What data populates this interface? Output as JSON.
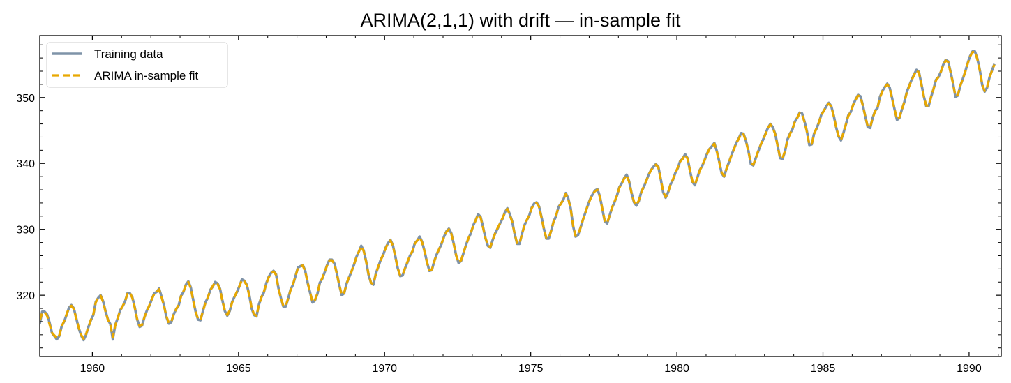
{
  "chart_data": {
    "type": "line",
    "title": "ARIMA(2,1,1) with drift — in-sample fit",
    "xlabel": "",
    "ylabel": "",
    "xlim": [
      1958.2,
      1991.1
    ],
    "ylim": [
      310.7,
      359.4
    ],
    "x_ticks": [
      1960,
      1965,
      1970,
      1975,
      1980,
      1985,
      1990
    ],
    "y_ticks": [
      320,
      330,
      340,
      350
    ],
    "grid": false,
    "legend_position": "top-left",
    "x_start": 1958.2,
    "x_step": 0.0833333,
    "series": [
      {
        "name": "Training data",
        "color": "#7f93a8",
        "style": "solid",
        "values": [
          315.7,
          317.5,
          317.5,
          317.1,
          315.9,
          314.3,
          313.8,
          313.3,
          313.8,
          315.3,
          316.0,
          317.0,
          318.1,
          318.5,
          318.0,
          316.5,
          315.0,
          313.9,
          313.2,
          314.0,
          315.2,
          316.2,
          317.0,
          319.0,
          319.6,
          320.0,
          319.1,
          317.6,
          316.3,
          315.6,
          313.3,
          315.5,
          316.5,
          317.7,
          318.3,
          319.0,
          320.3,
          320.3,
          319.7,
          318.2,
          316.3,
          315.2,
          315.4,
          316.7,
          317.7,
          318.4,
          319.4,
          320.3,
          320.5,
          321.0,
          319.8,
          318.5,
          316.7,
          315.7,
          315.9,
          317.1,
          317.9,
          318.4,
          319.9,
          320.5,
          321.6,
          322.1,
          321.2,
          319.3,
          317.5,
          316.3,
          316.2,
          317.6,
          318.9,
          319.6,
          320.8,
          321.3,
          322.0,
          321.8,
          321.0,
          319.2,
          317.6,
          316.9,
          317.6,
          319.0,
          319.8,
          320.5,
          321.4,
          322.4,
          322.2,
          321.6,
          320.1,
          318.0,
          317.0,
          316.8,
          318.6,
          319.7,
          320.4,
          321.8,
          322.8,
          323.4,
          323.7,
          323.2,
          321.1,
          319.6,
          318.3,
          318.3,
          319.5,
          320.9,
          321.6,
          322.9,
          324.2,
          324.4,
          324.6,
          323.7,
          321.9,
          320.4,
          318.9,
          319.2,
          320.2,
          321.9,
          322.5,
          323.5,
          324.6,
          325.4,
          325.4,
          324.8,
          323.3,
          321.5,
          320.0,
          320.3,
          321.8,
          322.7,
          323.6,
          324.6,
          325.8,
          326.6,
          327.5,
          326.8,
          325.2,
          323.1,
          321.9,
          321.6,
          323.3,
          324.3,
          325.4,
          326.1,
          327.2,
          327.9,
          328.4,
          327.6,
          325.9,
          324.1,
          322.9,
          323.0,
          324.1,
          325.0,
          326.0,
          326.6,
          327.9,
          328.3,
          328.9,
          328.1,
          326.7,
          325.0,
          323.7,
          323.8,
          325.2,
          326.2,
          327.0,
          327.8,
          328.9,
          329.7,
          330.1,
          329.4,
          327.8,
          326.0,
          324.9,
          325.2,
          326.4,
          327.6,
          328.6,
          329.4,
          330.6,
          331.4,
          332.3,
          331.9,
          330.4,
          328.7,
          327.5,
          327.2,
          328.4,
          329.4,
          330.1,
          330.9,
          331.6,
          332.6,
          333.2,
          332.3,
          331.2,
          329.3,
          327.8,
          327.8,
          329.3,
          330.6,
          331.4,
          332.1,
          333.3,
          333.9,
          334.1,
          333.5,
          331.9,
          330.1,
          328.6,
          328.6,
          329.8,
          331.2,
          332.0,
          333.4,
          333.9,
          334.5,
          335.5,
          334.7,
          333.2,
          330.5,
          328.9,
          329.1,
          330.2,
          331.4,
          332.5,
          333.6,
          334.6,
          335.3,
          335.9,
          336.1,
          335.0,
          333.1,
          331.2,
          330.9,
          332.1,
          333.3,
          334.1,
          335.1,
          336.4,
          337.0,
          337.8,
          338.3,
          337.3,
          335.5,
          334.1,
          333.6,
          334.3,
          335.7,
          336.4,
          337.3,
          338.3,
          339.0,
          339.5,
          339.9,
          339.5,
          337.6,
          335.6,
          334.8,
          335.6,
          336.8,
          337.5,
          338.6,
          339.3,
          340.4,
          340.7,
          341.4,
          340.8,
          338.9,
          337.2,
          336.7,
          337.8,
          339.0,
          339.6,
          340.5,
          341.5,
          342.2,
          342.6,
          343.1,
          341.9,
          340.3,
          338.5,
          338.0,
          339.2,
          340.2,
          341.2,
          342.2,
          343.1,
          343.8,
          344.6,
          344.5,
          343.4,
          341.9,
          339.9,
          339.7,
          340.8,
          341.8,
          342.8,
          343.6,
          344.5,
          345.4,
          346.0,
          345.5,
          344.5,
          342.7,
          340.8,
          340.7,
          341.8,
          343.6,
          344.5,
          345.1,
          346.3,
          346.9,
          347.7,
          347.6,
          346.4,
          344.9,
          342.8,
          342.9,
          344.6,
          345.3,
          346.3,
          347.5,
          348.0,
          348.7,
          349.2,
          348.7,
          347.3,
          345.5,
          344.1,
          343.5,
          344.6,
          345.9,
          347.3,
          347.8,
          348.9,
          349.7,
          350.4,
          350.2,
          348.8,
          347.1,
          345.5,
          345.4,
          346.9,
          348.0,
          348.4,
          350.1,
          351.0,
          351.6,
          352.1,
          351.5,
          349.9,
          348.2,
          346.6,
          346.9,
          348.2,
          349.3,
          350.8,
          351.8,
          352.7,
          353.5,
          354.2,
          353.9,
          352.1,
          350.2,
          348.7,
          348.7,
          350.1,
          351.3,
          352.7,
          353.1,
          353.9,
          355.0,
          355.7,
          355.5,
          353.9,
          352.2,
          350.1,
          350.3,
          351.8,
          352.8,
          353.9,
          355.2,
          356.3,
          357.0,
          357.0,
          355.9,
          354.2,
          351.9,
          350.9,
          351.5,
          353.1,
          354.1,
          355.1
        ]
      },
      {
        "name": "ARIMA in-sample fit",
        "color": "#e8a800",
        "style": "dashed",
        "values": [
          316.2,
          317.3,
          317.4,
          316.9,
          315.6,
          314.3,
          313.9,
          313.5,
          313.9,
          315.2,
          316.1,
          317.1,
          318.1,
          318.4,
          317.9,
          316.4,
          315.1,
          314.0,
          313.4,
          314.1,
          315.2,
          316.3,
          317.1,
          318.9,
          319.6,
          319.9,
          319.0,
          317.5,
          316.3,
          315.5,
          313.6,
          315.4,
          316.5,
          317.7,
          318.3,
          319.1,
          320.2,
          320.4,
          319.6,
          318.1,
          316.4,
          315.3,
          315.5,
          316.7,
          317.6,
          318.5,
          319.4,
          320.2,
          320.5,
          320.9,
          319.7,
          318.4,
          316.8,
          315.8,
          316.0,
          317.1,
          317.9,
          318.5,
          319.8,
          320.6,
          321.5,
          322.0,
          321.1,
          319.2,
          317.5,
          316.4,
          316.3,
          317.6,
          318.8,
          319.7,
          320.7,
          321.4,
          321.9,
          321.7,
          320.9,
          319.1,
          317.7,
          317.0,
          317.7,
          318.9,
          319.8,
          320.6,
          321.4,
          322.3,
          322.1,
          321.5,
          320.0,
          318.1,
          317.1,
          316.9,
          318.5,
          319.7,
          320.5,
          321.7,
          322.7,
          323.3,
          323.6,
          323.1,
          321.1,
          319.6,
          318.4,
          318.4,
          319.5,
          320.8,
          321.7,
          322.9,
          324.1,
          324.4,
          324.5,
          323.6,
          321.9,
          320.4,
          319.0,
          319.3,
          320.3,
          321.8,
          322.6,
          323.6,
          324.5,
          325.3,
          325.3,
          324.7,
          323.2,
          321.5,
          320.1,
          320.4,
          321.7,
          322.8,
          323.6,
          324.7,
          325.7,
          326.6,
          327.4,
          326.7,
          325.1,
          323.2,
          321.9,
          321.7,
          323.2,
          324.4,
          325.3,
          326.2,
          327.1,
          327.9,
          328.3,
          327.5,
          325.8,
          324.1,
          323.0,
          323.1,
          324.1,
          325.1,
          326.0,
          326.7,
          327.8,
          328.3,
          328.8,
          328.0,
          326.6,
          325.0,
          323.8,
          323.9,
          325.1,
          326.3,
          327.0,
          327.9,
          328.8,
          329.6,
          330.0,
          329.3,
          327.7,
          326.0,
          325.0,
          325.3,
          326.4,
          327.6,
          328.6,
          329.5,
          330.5,
          331.4,
          332.2,
          331.8,
          330.3,
          328.7,
          327.6,
          327.3,
          328.4,
          329.4,
          330.2,
          330.9,
          331.7,
          332.5,
          333.1,
          332.2,
          331.1,
          329.3,
          327.9,
          327.9,
          329.2,
          330.6,
          331.4,
          332.2,
          333.2,
          333.8,
          334.0,
          333.4,
          331.8,
          330.1,
          328.7,
          328.7,
          329.8,
          331.2,
          332.1,
          333.3,
          333.9,
          334.5,
          335.4,
          334.6,
          333.1,
          330.6,
          329.0,
          329.2,
          330.2,
          331.4,
          332.5,
          333.6,
          334.5,
          335.3,
          335.8,
          336.0,
          334.9,
          333.1,
          331.3,
          331.0,
          332.1,
          333.3,
          334.2,
          335.1,
          336.3,
          337.0,
          337.7,
          338.2,
          337.2,
          335.5,
          334.2,
          333.7,
          334.4,
          335.6,
          336.5,
          337.3,
          338.2,
          339.0,
          339.4,
          339.8,
          339.4,
          337.6,
          335.7,
          334.9,
          335.6,
          336.8,
          337.6,
          338.5,
          339.4,
          340.3,
          340.7,
          341.3,
          340.7,
          338.9,
          337.3,
          336.8,
          337.8,
          338.9,
          339.7,
          340.5,
          341.4,
          342.2,
          342.6,
          343.0,
          341.8,
          340.2,
          338.6,
          338.1,
          339.2,
          340.2,
          341.2,
          342.1,
          343.1,
          343.7,
          344.5,
          344.4,
          343.3,
          341.8,
          340.0,
          339.8,
          340.8,
          341.9,
          342.8,
          343.7,
          344.4,
          345.4,
          345.9,
          345.4,
          344.4,
          342.6,
          340.9,
          340.8,
          341.9,
          343.5,
          344.4,
          345.2,
          346.2,
          346.9,
          347.6,
          347.5,
          346.3,
          344.8,
          342.9,
          343.0,
          344.5,
          345.4,
          346.3,
          347.4,
          348.0,
          348.7,
          349.1,
          348.6,
          347.2,
          345.5,
          344.2,
          343.6,
          344.6,
          345.9,
          347.2,
          347.8,
          348.9,
          349.7,
          350.3,
          350.1,
          348.7,
          347.1,
          345.6,
          345.5,
          346.9,
          347.9,
          348.5,
          350.0,
          350.9,
          351.6,
          352.0,
          351.4,
          349.8,
          348.2,
          346.7,
          347.0,
          348.2,
          349.3,
          350.7,
          351.7,
          352.6,
          353.4,
          354.1,
          353.8,
          352.0,
          350.2,
          348.8,
          348.8,
          350.1,
          351.3,
          352.6,
          353.1,
          353.9,
          354.9,
          355.6,
          355.4,
          353.8,
          352.1,
          350.2,
          350.4,
          351.8,
          352.8,
          353.9,
          355.1,
          356.2,
          356.9,
          356.9,
          355.8,
          354.1,
          352.0,
          351.0,
          351.6,
          353.0,
          354.1,
          355.0
        ]
      }
    ]
  }
}
